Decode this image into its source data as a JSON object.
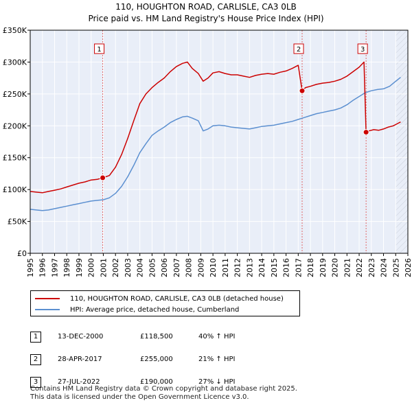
{
  "title": "110, HOUGHTON ROAD, CARLISLE, CA3 0LB",
  "subtitle": "Price paid vs. HM Land Registry's House Price Index (HPI)",
  "chart_data": {
    "type": "line",
    "xlim": [
      1995,
      2026
    ],
    "ylim": [
      0,
      350000
    ],
    "x_ticks": [
      "1995",
      "1996",
      "1997",
      "1998",
      "1999",
      "2000",
      "2001",
      "2002",
      "2003",
      "2004",
      "2005",
      "2006",
      "2007",
      "2008",
      "2009",
      "2010",
      "2011",
      "2012",
      "2013",
      "2014",
      "2015",
      "2016",
      "2017",
      "2018",
      "2019",
      "2020",
      "2021",
      "2022",
      "2023",
      "2024",
      "2025",
      "2026"
    ],
    "y_ticks": [
      {
        "value": 0,
        "label": "£0"
      },
      {
        "value": 50000,
        "label": "£50K"
      },
      {
        "value": 100000,
        "label": "£100K"
      },
      {
        "value": 150000,
        "label": "£150K"
      },
      {
        "value": 200000,
        "label": "£200K"
      },
      {
        "value": 250000,
        "label": "£250K"
      },
      {
        "value": 300000,
        "label": "£300K"
      },
      {
        "value": 350000,
        "label": "£350K"
      }
    ],
    "grid": true,
    "forecast_from": 2025.0,
    "series": [
      {
        "name": "110, HOUGHTON ROAD, CARLISLE, CA3 0LB (detached house)",
        "color": "#cc0000",
        "x": [
          1995.0,
          1995.5,
          1996.0,
          1996.5,
          1997.0,
          1997.5,
          1998.0,
          1998.5,
          1999.0,
          1999.5,
          2000.0,
          2000.5,
          2000.95,
          2001.5,
          2002.0,
          2002.5,
          2003.0,
          2003.5,
          2004.0,
          2004.5,
          2005.0,
          2005.5,
          2006.0,
          2006.5,
          2007.0,
          2007.5,
          2007.9,
          2008.3,
          2008.8,
          2009.2,
          2009.6,
          2010.0,
          2010.5,
          2011.0,
          2011.5,
          2012.0,
          2012.5,
          2013.0,
          2013.5,
          2014.0,
          2014.5,
          2015.0,
          2015.5,
          2016.0,
          2016.5,
          2017.0,
          2017.32,
          2017.6,
          2018.0,
          2018.5,
          2019.0,
          2019.5,
          2020.0,
          2020.5,
          2021.0,
          2021.5,
          2022.0,
          2022.4,
          2022.57,
          2022.8,
          2023.2,
          2023.6,
          2024.0,
          2024.4,
          2024.8,
          2025.1,
          2025.4
        ],
        "values": [
          97000,
          96000,
          95000,
          97000,
          99000,
          101000,
          104000,
          107000,
          110000,
          112000,
          115000,
          116000,
          118500,
          122000,
          135000,
          155000,
          180000,
          208000,
          235000,
          250000,
          260000,
          268000,
          275000,
          285000,
          293000,
          298000,
          300000,
          290000,
          282000,
          270000,
          275000,
          283000,
          285000,
          282000,
          280000,
          280000,
          278000,
          276000,
          279000,
          281000,
          282000,
          281000,
          284000,
          286000,
          290000,
          295000,
          255000,
          260000,
          262000,
          265000,
          267000,
          268000,
          270000,
          273000,
          278000,
          285000,
          292000,
          300000,
          190000,
          192000,
          194000,
          193000,
          195000,
          198000,
          200000,
          203000,
          206000
        ]
      },
      {
        "name": "HPI: Average price, detached house, Cumberland",
        "color": "#5b8fd0",
        "x": [
          1995.0,
          1995.5,
          1996.0,
          1996.5,
          1997.0,
          1997.5,
          1998.0,
          1998.5,
          1999.0,
          1999.5,
          2000.0,
          2000.5,
          2001.0,
          2001.5,
          2002.0,
          2002.5,
          2003.0,
          2003.5,
          2004.0,
          2004.5,
          2005.0,
          2005.5,
          2006.0,
          2006.5,
          2007.0,
          2007.5,
          2007.9,
          2008.3,
          2008.8,
          2009.2,
          2009.6,
          2010.0,
          2010.5,
          2011.0,
          2011.5,
          2012.0,
          2012.5,
          2013.0,
          2013.5,
          2014.0,
          2014.5,
          2015.0,
          2015.5,
          2016.0,
          2016.5,
          2017.0,
          2017.5,
          2018.0,
          2018.5,
          2019.0,
          2019.5,
          2020.0,
          2020.5,
          2021.0,
          2021.5,
          2022.0,
          2022.5,
          2023.0,
          2023.5,
          2024.0,
          2024.5,
          2025.0,
          2025.4
        ],
        "values": [
          69000,
          68000,
          67000,
          68000,
          70000,
          72000,
          74000,
          76000,
          78000,
          80000,
          82000,
          83000,
          84000,
          87000,
          94000,
          105000,
          120000,
          138000,
          158000,
          172000,
          185000,
          192000,
          198000,
          205000,
          210000,
          214000,
          215000,
          212000,
          208000,
          192000,
          195000,
          200000,
          201000,
          200000,
          198000,
          197000,
          196000,
          195000,
          197000,
          199000,
          200000,
          201000,
          203000,
          205000,
          207000,
          210000,
          213000,
          216000,
          219000,
          221000,
          223000,
          225000,
          228000,
          233000,
          240000,
          246000,
          252000,
          255000,
          257000,
          258000,
          262000,
          270000,
          276000
        ]
      }
    ],
    "annotations": [
      {
        "label": "1",
        "x": 2000.95,
        "value": 118500
      },
      {
        "label": "2",
        "x": 2017.32,
        "value": 255000
      },
      {
        "label": "3",
        "x": 2022.57,
        "value": 190000
      }
    ]
  },
  "legend": {
    "items": [
      {
        "label": "110, HOUGHTON ROAD, CARLISLE, CA3 0LB (detached house)",
        "color": "#cc0000"
      },
      {
        "label": "HPI: Average price, detached house, Cumberland",
        "color": "#5b8fd0"
      }
    ]
  },
  "sales": [
    {
      "num": "1",
      "date": "13-DEC-2000",
      "price": "£118,500",
      "hpi": "40% ↑ HPI"
    },
    {
      "num": "2",
      "date": "28-APR-2017",
      "price": "£255,000",
      "hpi": "21% ↑ HPI"
    },
    {
      "num": "3",
      "date": "27-JUL-2022",
      "price": "£190,000",
      "hpi": "27% ↓ HPI"
    }
  ],
  "footer": {
    "line1": "Contains HM Land Registry data © Crown copyright and database right 2025.",
    "line2": "This data is licensed under the Open Government Licence v3.0."
  }
}
